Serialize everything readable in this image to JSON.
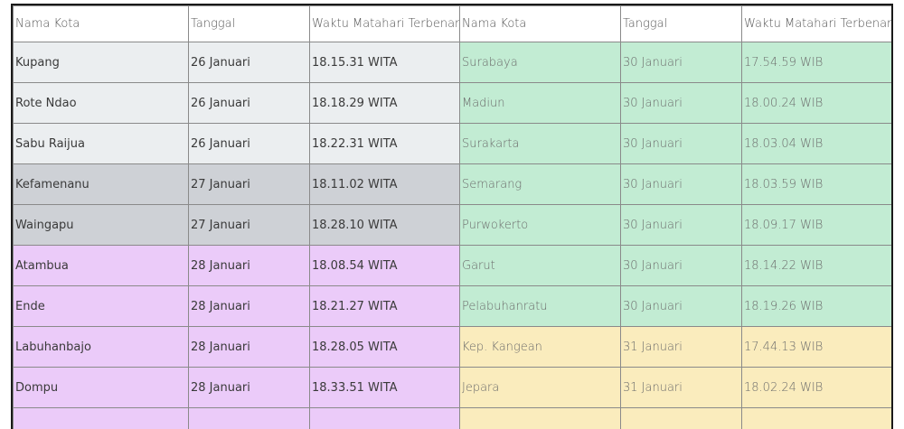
{
  "table": {
    "headers": [
      "Nama Kota",
      "Tanggal",
      "Waktu Matahari Terbenam",
      "Nama Kota",
      "Tanggal",
      "Waktu Matahari Terbenam"
    ],
    "rows": [
      {
        "left": [
          "Kupang",
          "26 Januari",
          "18.15.31 WITA"
        ],
        "right": [
          "Surabaya",
          "30 Januari",
          "17.54.59 WIB"
        ],
        "left_color": "#ebeef0",
        "right_color": "#c2ecd3"
      },
      {
        "left": [
          "Rote Ndao",
          "26 Januari",
          "18.18.29 WITA"
        ],
        "right": [
          "Madiun",
          "30 Januari",
          "18.00.24 WIB"
        ],
        "left_color": "#ebeef0",
        "right_color": "#c2ecd3"
      },
      {
        "left": [
          "Sabu Raijua",
          "26 Januari",
          "18.22.31 WITA"
        ],
        "right": [
          "Surakarta",
          "30 Januari",
          "18.03.04 WIB"
        ],
        "left_color": "#ebeef0",
        "right_color": "#c2ecd3"
      },
      {
        "left": [
          "Kefamenanu",
          "27 Januari",
          "18.11.02 WITA"
        ],
        "right": [
          "Semarang",
          "30 Januari",
          "18.03.59 WIB"
        ],
        "left_color": "#ced1d6",
        "right_color": "#c2ecd3"
      },
      {
        "left": [
          "Waingapu",
          "27 Januari",
          "18.28.10 WITA"
        ],
        "right": [
          "Purwokerto",
          "30 Januari",
          "18.09.17 WIB"
        ],
        "left_color": "#ced1d6",
        "right_color": "#c2ecd3"
      },
      {
        "left": [
          "Atambua",
          "28 Januari",
          "18.08.54 WITA"
        ],
        "right": [
          "Garut",
          "30 Januari",
          "18.14.22 WIB"
        ],
        "left_color": "#ebcbf9",
        "right_color": "#c2ecd3"
      },
      {
        "left": [
          "Ende",
          "28 Januari",
          "18.21.27 WITA"
        ],
        "right": [
          "Pelabuhanratu",
          "30 Januari",
          "18.19.26 WIB"
        ],
        "left_color": "#ebcbf9",
        "right_color": "#c2ecd3"
      },
      {
        "left": [
          "Labuhanbajo",
          "28 Januari",
          "18.28.05 WITA"
        ],
        "right": [
          "Kep. Kangean",
          "31 Januari",
          "17.44.13 WIB"
        ],
        "left_color": "#ebcbf9",
        "right_color": "#faecbd"
      },
      {
        "left": [
          "Dompu",
          "28 Januari",
          "18.33.51 WITA"
        ],
        "right": [
          "Jepara",
          "31 Januari",
          "18.02.24 WIB"
        ],
        "left_color": "#ebcbf9",
        "right_color": "#faecbd"
      }
    ],
    "tail_colors": [
      "#ebcbf9",
      "#faecbd"
    ]
  }
}
